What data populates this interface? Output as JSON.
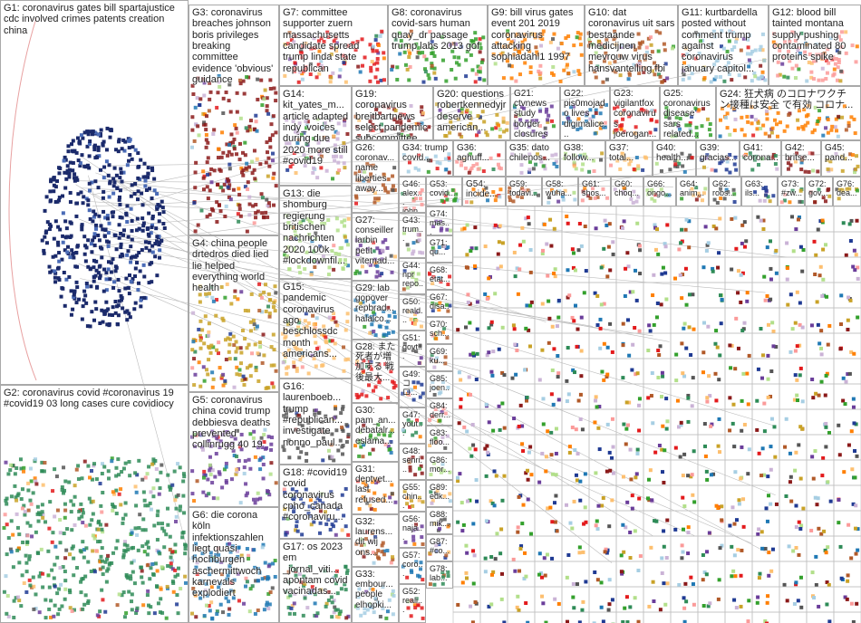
{
  "groups": [
    {
      "label": "G1: coronavirus gates bill spartajustice cdc involved crimes patents creation china"
    },
    {
      "label": "G2: coronavirus covid #coronavirus 19 #covid19 03 long cases cure covidiocy"
    },
    {
      "label": "G3: coronavirus breaches johnson boris privileges breaking committee evidence 'obvious' guidance"
    },
    {
      "label": "G4: china people drtedros died lied lie helped everything world health"
    },
    {
      "label": "G5: coronavirus china covid trump debbiesva deaths prevented collinrugg 40 19"
    },
    {
      "label": "G6: die corona köln infektionszahlen liegt quasi hochburgen aschermittwoch karnevals explodiert"
    },
    {
      "label": "G7: committee supporter zuern massachusetts candidate spread trump linda state republican"
    },
    {
      "label": "G8: coronavirus covid-sars human quay_dr passage trump labs 2013 gof"
    },
    {
      "label": "G9: bill virus gates event 201 2019 coronavirus attacking sophiadahl1 1997"
    },
    {
      "label": "G10: dat coronavirus uit sars bestaande medicijnen mevrouw virus hansvantelling fbi"
    },
    {
      "label": "G11: kurtbardella posted without comment trump against coronavirus january capitol..."
    },
    {
      "label": "G12: blood bill tainted montana supply pushing contaminated 80 proteins spike"
    },
    {
      "label": "G14: kit_yates_m... article adapted indy_voices during due 2020 more still #covid19"
    },
    {
      "label": "G13: die shomburg regierung britischen nachrichten 2020 100k #lockdownfil..."
    },
    {
      "label": "G15: pandemic coronavirus ago beschlossdc month americans..."
    },
    {
      "label": "G16: laurenboeb... trump #republican... investigate nonno_paul..."
    },
    {
      "label": "G18: #covid19 covid coronavirus cpho_canada #coronaviru..."
    },
    {
      "label": "G17: os 2023 em _jornal_viti... apontam covid vacinadas..."
    },
    {
      "label": "G19: coronavirus breitbartnews select pandemic subcommittee..."
    },
    {
      "label": "G20: questions robertkennedyjr deserve american..."
    },
    {
      "label": "G21: ctvnews study border closures 19 casts..."
    },
    {
      "label": "G22: pis0mojado lives digimalice..."
    },
    {
      "label": "G23: vigilantfox coronavirus joerogan..."
    },
    {
      "label": "G25: coronavirus disease sars related..."
    },
    {
      "label": "G24: 狂犬病 のコロナワクチ ン接種は安全 で有効 コロナ..."
    },
    {
      "label": "G26: coronav... name liberties away..."
    },
    {
      "label": "G34: trump covid..."
    },
    {
      "label": "G36: aghuff..."
    },
    {
      "label": "G35: dato chilenos..."
    },
    {
      "label": "G38: follow..."
    },
    {
      "label": "G37: total..."
    },
    {
      "label": "G40: health..."
    },
    {
      "label": "G39: gracias..."
    },
    {
      "label": "G41: corona..."
    },
    {
      "label": "G42: britse..."
    },
    {
      "label": "G45: pand..."
    },
    {
      "label": "G27: conseiller larbin petit vitemad..."
    },
    {
      "label": "G29: lab gopover repbrad... halalco..."
    },
    {
      "label": "G28: また 死者が増 加する 戦 後最大..."
    },
    {
      "label": "G30: pam_an... debatalr... eslama..."
    },
    {
      "label": "G31: deptvet... last refused..."
    },
    {
      "label": "G32: laurens... dit wij ons..."
    },
    {
      "label": "G33: embour... people elhopki..."
    },
    {
      "label": "G46: alex... john..."
    },
    {
      "label": "G43: trum..."
    },
    {
      "label": "G44: npr repo..."
    },
    {
      "label": "G50: reald..."
    },
    {
      "label": "G51: govt..."
    },
    {
      "label": "G49: コロ..."
    },
    {
      "label": "G47: yout..."
    },
    {
      "label": "G48: senri..."
    },
    {
      "label": "G55: chin..."
    },
    {
      "label": "G56: naja..."
    },
    {
      "label": "G57: coro..."
    },
    {
      "label": "G52: reali..."
    },
    {
      "label": "G53: covid..."
    },
    {
      "label": "G54: incide..."
    },
    {
      "label": "G59: todavi..."
    },
    {
      "label": "G58: wuha..."
    },
    {
      "label": "G61: shos..."
    },
    {
      "label": "G60: choq..."
    },
    {
      "label": "G66: ongo..."
    },
    {
      "label": "G64: anim..."
    },
    {
      "label": "G62: robs..."
    },
    {
      "label": "G63: ils..."
    },
    {
      "label": "G73: #zw..."
    },
    {
      "label": "G72: gov..."
    },
    {
      "label": "G76: dea..."
    },
    {
      "label": "G74: mas..."
    },
    {
      "label": "G71: qu..."
    },
    {
      "label": "G68: état..."
    },
    {
      "label": "G67: disa..."
    },
    {
      "label": "G70: sch..."
    },
    {
      "label": "G69: ku..."
    },
    {
      "label": "G85: joen..."
    },
    {
      "label": "G84: derr..."
    },
    {
      "label": "G83: floo..."
    },
    {
      "label": "G86: mor..."
    },
    {
      "label": "G89: edk..."
    },
    {
      "label": "G88: mik..."
    },
    {
      "label": "G87: #co..."
    },
    {
      "label": "G78: lab..."
    }
  ]
}
